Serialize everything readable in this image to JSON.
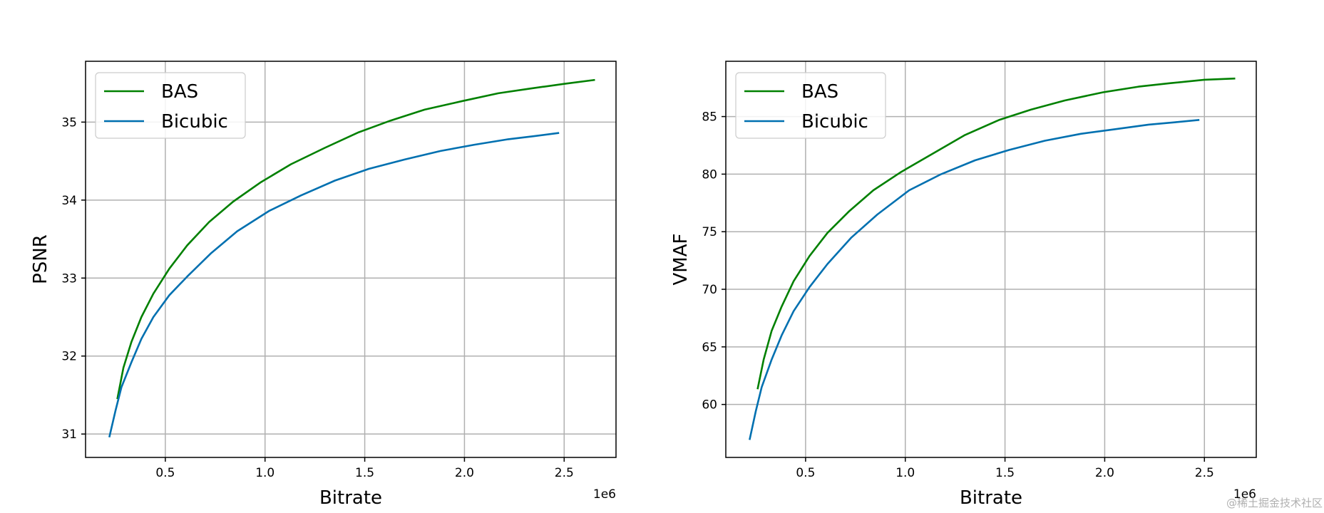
{
  "chart_data": [
    {
      "type": "line",
      "xlabel": "Bitrate",
      "ylabel": "PSNR",
      "x_offset_label": "1e6",
      "xlim": [
        0.1,
        2.76
      ],
      "ylim": [
        30.7,
        35.78
      ],
      "xticks": [
        0.5,
        1.0,
        1.5,
        2.0,
        2.5
      ],
      "xtick_labels": [
        "0.5",
        "1.0",
        "1.5",
        "2.0",
        "2.5"
      ],
      "yticks": [
        31,
        32,
        33,
        34,
        35
      ],
      "ytick_labels": [
        "31",
        "32",
        "33",
        "34",
        "35"
      ],
      "grid": true,
      "legend_position": "upper-left",
      "series": [
        {
          "name": "BAS",
          "color": "#008000",
          "x": [
            0.26,
            0.29,
            0.33,
            0.38,
            0.44,
            0.52,
            0.61,
            0.72,
            0.84,
            0.98,
            1.13,
            1.3,
            1.47,
            1.63,
            1.8,
            1.99,
            2.17,
            2.33,
            2.5,
            2.65
          ],
          "y": [
            31.46,
            31.85,
            32.18,
            32.5,
            32.8,
            33.12,
            33.42,
            33.72,
            33.98,
            34.23,
            34.46,
            34.67,
            34.87,
            35.02,
            35.16,
            35.27,
            35.37,
            35.43,
            35.49,
            35.54
          ]
        },
        {
          "name": "Bicubic",
          "color": "#0070b0",
          "x": [
            0.22,
            0.25,
            0.28,
            0.33,
            0.38,
            0.44,
            0.52,
            0.61,
            0.73,
            0.86,
            1.02,
            1.18,
            1.35,
            1.52,
            1.7,
            1.88,
            2.05,
            2.22,
            2.35,
            2.47
          ],
          "y": [
            30.97,
            31.3,
            31.6,
            31.92,
            32.22,
            32.5,
            32.78,
            33.02,
            33.32,
            33.6,
            33.86,
            34.06,
            34.25,
            34.4,
            34.52,
            34.63,
            34.71,
            34.78,
            34.82,
            34.86
          ]
        }
      ]
    },
    {
      "type": "line",
      "xlabel": "Bitrate",
      "ylabel": "VMAF",
      "x_offset_label": "1e6",
      "xlim": [
        0.1,
        2.76
      ],
      "ylim": [
        55.4,
        89.8
      ],
      "xticks": [
        0.5,
        1.0,
        1.5,
        2.0,
        2.5
      ],
      "xtick_labels": [
        "0.5",
        "1.0",
        "1.5",
        "2.0",
        "2.5"
      ],
      "yticks": [
        60,
        65,
        70,
        75,
        80,
        85
      ],
      "ytick_labels": [
        "60",
        "65",
        "70",
        "75",
        "80",
        "85"
      ],
      "grid": true,
      "legend_position": "upper-left",
      "series": [
        {
          "name": "BAS",
          "color": "#008000",
          "x": [
            0.26,
            0.29,
            0.33,
            0.38,
            0.44,
            0.52,
            0.61,
            0.72,
            0.84,
            0.98,
            1.13,
            1.3,
            1.47,
            1.63,
            1.8,
            1.99,
            2.17,
            2.33,
            2.5,
            2.65
          ],
          "y": [
            61.4,
            63.9,
            66.4,
            68.5,
            70.7,
            72.9,
            74.9,
            76.8,
            78.6,
            80.2,
            81.7,
            83.4,
            84.7,
            85.6,
            86.4,
            87.1,
            87.6,
            87.9,
            88.2,
            88.3
          ]
        },
        {
          "name": "Bicubic",
          "color": "#0070b0",
          "x": [
            0.22,
            0.25,
            0.28,
            0.33,
            0.38,
            0.44,
            0.52,
            0.61,
            0.73,
            0.86,
            1.02,
            1.18,
            1.35,
            1.52,
            1.7,
            1.88,
            2.05,
            2.22,
            2.35,
            2.47
          ],
          "y": [
            57.0,
            59.4,
            61.5,
            63.9,
            66.0,
            68.1,
            70.2,
            72.2,
            74.5,
            76.5,
            78.6,
            80.0,
            81.2,
            82.1,
            82.9,
            83.5,
            83.9,
            84.3,
            84.5,
            84.7
          ]
        }
      ]
    }
  ],
  "watermark": "@稀土掘金技术社区"
}
